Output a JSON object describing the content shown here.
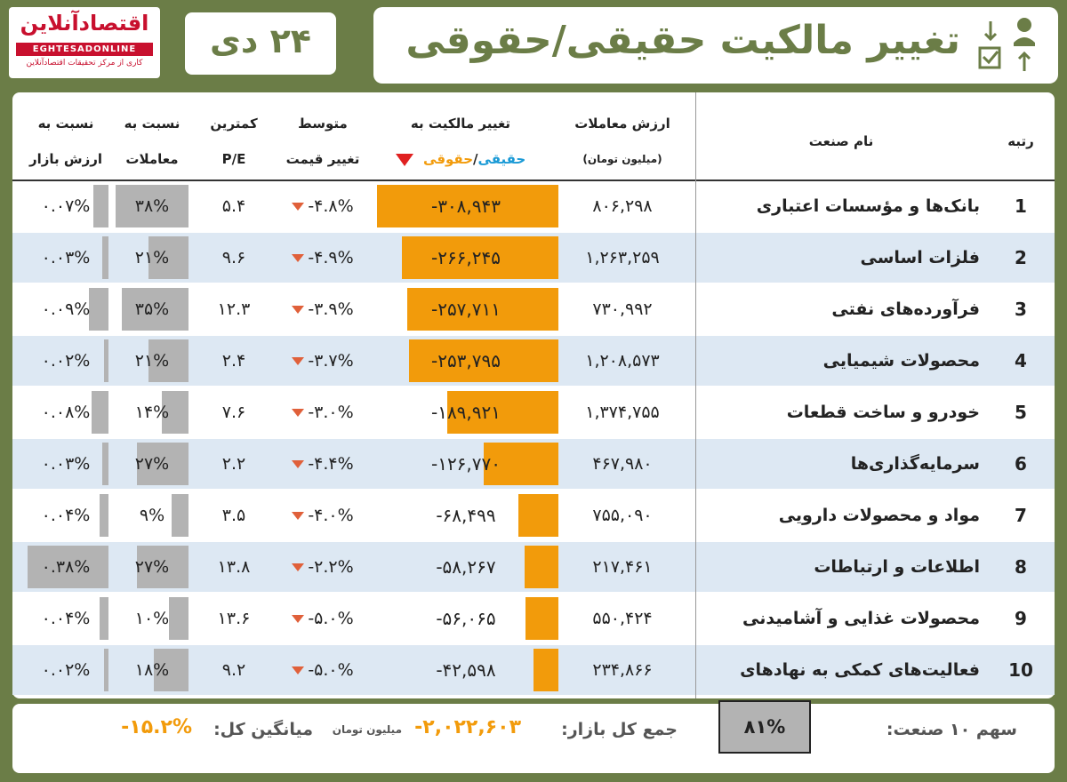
{
  "header": {
    "logo_main": "اقتصادآنلاین",
    "logo_en": "EGHTESADONLINE",
    "logo_sub": "کاری از مرکز تحقیقات اقتصادآنلاین",
    "date": "۲۴ دی",
    "title": "تغییر مالکیت حقیقی/حقوقی"
  },
  "columns": {
    "rank": "رتبه",
    "industry": "نام صنعت",
    "trade_value_1": "ارزش معاملات",
    "trade_value_2": "(میلیون تومان)",
    "ownership_change_1": "تغییر مالکیت به",
    "ownership_change_real": "حقیقی",
    "ownership_change_slash": "/",
    "ownership_change_legal": "حقوقی",
    "avg_price_1": "متوسط",
    "avg_price_2": "تغییر قیمت",
    "pe_1": "کمترین",
    "pe_2": "P/E",
    "ratio_trade_1": "نسبت به",
    "ratio_trade_2": "معاملات",
    "ratio_market_1": "نسبت به",
    "ratio_market_2": "ارزش بازار"
  },
  "chart_data": {
    "type": "table",
    "title": "تغییر مالکیت حقیقی/حقوقی",
    "unit": "میلیون تومان",
    "rows": [
      {
        "rank": "1",
        "industry": "بانک‌ها و مؤسسات اعتباری",
        "trade_value": "۸۰۶,۲۹۸",
        "ownership_change": "-۳۰۸,۹۴۳",
        "ownership_value": -308943,
        "avg_price_change": "-۴.۸%",
        "min_pe": "۵.۴",
        "ratio_trade": "۳۸%",
        "ratio_trade_value": 38,
        "ratio_market": "۰.۰۷%",
        "ratio_market_value": 0.07
      },
      {
        "rank": "2",
        "industry": "فلزات اساسی",
        "trade_value": "۱,۲۶۳,۲۵۹",
        "ownership_change": "-۲۶۶,۲۴۵",
        "ownership_value": -266245,
        "avg_price_change": "-۴.۹%",
        "min_pe": "۹.۶",
        "ratio_trade": "۲۱%",
        "ratio_trade_value": 21,
        "ratio_market": "۰.۰۳%",
        "ratio_market_value": 0.03
      },
      {
        "rank": "3",
        "industry": "فرآورده‌های نفتی",
        "trade_value": "۷۳۰,۹۹۲",
        "ownership_change": "-۲۵۷,۷۱۱",
        "ownership_value": -257711,
        "avg_price_change": "-۳.۹%",
        "min_pe": "۱۲.۳",
        "ratio_trade": "۳۵%",
        "ratio_trade_value": 35,
        "ratio_market": "۰.۰۹%",
        "ratio_market_value": 0.09
      },
      {
        "rank": "4",
        "industry": "محصولات شیمیایی",
        "trade_value": "۱,۲۰۸,۵۷۳",
        "ownership_change": "-۲۵۳,۷۹۵",
        "ownership_value": -253795,
        "avg_price_change": "-۳.۷%",
        "min_pe": "۲.۴",
        "ratio_trade": "۲۱%",
        "ratio_trade_value": 21,
        "ratio_market": "۰.۰۲%",
        "ratio_market_value": 0.02
      },
      {
        "rank": "5",
        "industry": "خودرو و ساخت قطعات",
        "trade_value": "۱,۳۷۴,۷۵۵",
        "ownership_change": "-۱۸۹,۹۲۱",
        "ownership_value": -189921,
        "avg_price_change": "-۳.۰%",
        "min_pe": "۷.۶",
        "ratio_trade": "۱۴%",
        "ratio_trade_value": 14,
        "ratio_market": "۰.۰۸%",
        "ratio_market_value": 0.08
      },
      {
        "rank": "6",
        "industry": "سرمایه‌گذاری‌ها",
        "trade_value": "۴۶۷,۹۸۰",
        "ownership_change": "-۱۲۶,۷۷۰",
        "ownership_value": -126770,
        "avg_price_change": "-۴.۴%",
        "min_pe": "۲.۲",
        "ratio_trade": "۲۷%",
        "ratio_trade_value": 27,
        "ratio_market": "۰.۰۳%",
        "ratio_market_value": 0.03
      },
      {
        "rank": "7",
        "industry": "مواد و محصولات دارویی",
        "trade_value": "۷۵۵,۰۹۰",
        "ownership_change": "-۶۸,۴۹۹",
        "ownership_value": -68499,
        "avg_price_change": "-۴.۰%",
        "min_pe": "۳.۵",
        "ratio_trade": "۹%",
        "ratio_trade_value": 9,
        "ratio_market": "۰.۰۴%",
        "ratio_market_value": 0.04
      },
      {
        "rank": "8",
        "industry": "اطلاعات و ارتباطات",
        "trade_value": "۲۱۷,۴۶۱",
        "ownership_change": "-۵۸,۲۶۷",
        "ownership_value": -58267,
        "avg_price_change": "-۲.۲%",
        "min_pe": "۱۳.۸",
        "ratio_trade": "۲۷%",
        "ratio_trade_value": 27,
        "ratio_market": "۰.۳۸%",
        "ratio_market_value": 0.38
      },
      {
        "rank": "9",
        "industry": "محصولات غذایی و آشامیدنی",
        "trade_value": "۵۵۰,۴۲۴",
        "ownership_change": "-۵۶,۰۶۵",
        "ownership_value": -56065,
        "avg_price_change": "-۵.۰%",
        "min_pe": "۱۳.۶",
        "ratio_trade": "۱۰%",
        "ratio_trade_value": 10,
        "ratio_market": "۰.۰۴%",
        "ratio_market_value": 0.04
      },
      {
        "rank": "10",
        "industry": "فعالیت‌های کمکی به نهادهای مالی",
        "trade_value": "۲۳۴,۸۶۶",
        "ownership_change": "-۴۲,۵۹۸",
        "ownership_value": -42598,
        "avg_price_change": "-۵.۰%",
        "min_pe": "۹.۲",
        "ratio_trade": "۱۸%",
        "ratio_trade_value": 18,
        "ratio_market": "۰.۰۲%",
        "ratio_market_value": 0.02
      }
    ]
  },
  "footer": {
    "share_label": "سهم ۱۰ صنعت:",
    "share_value": "۸۱%",
    "total_label": "جمع کل بازار:",
    "total_value": "-۲,۰۲۲,۶۰۳",
    "total_unit": "میلیون تومان",
    "avg_label": "میانگین کل:",
    "avg_value": "-۱۵.۲%"
  },
  "colors": {
    "olive": "#6b7d47",
    "orange": "#f29b0b",
    "grey": "#b3b3b3",
    "row_alt": "#dde8f3",
    "red": "#c8102e",
    "blue": "#1a9ad6"
  }
}
